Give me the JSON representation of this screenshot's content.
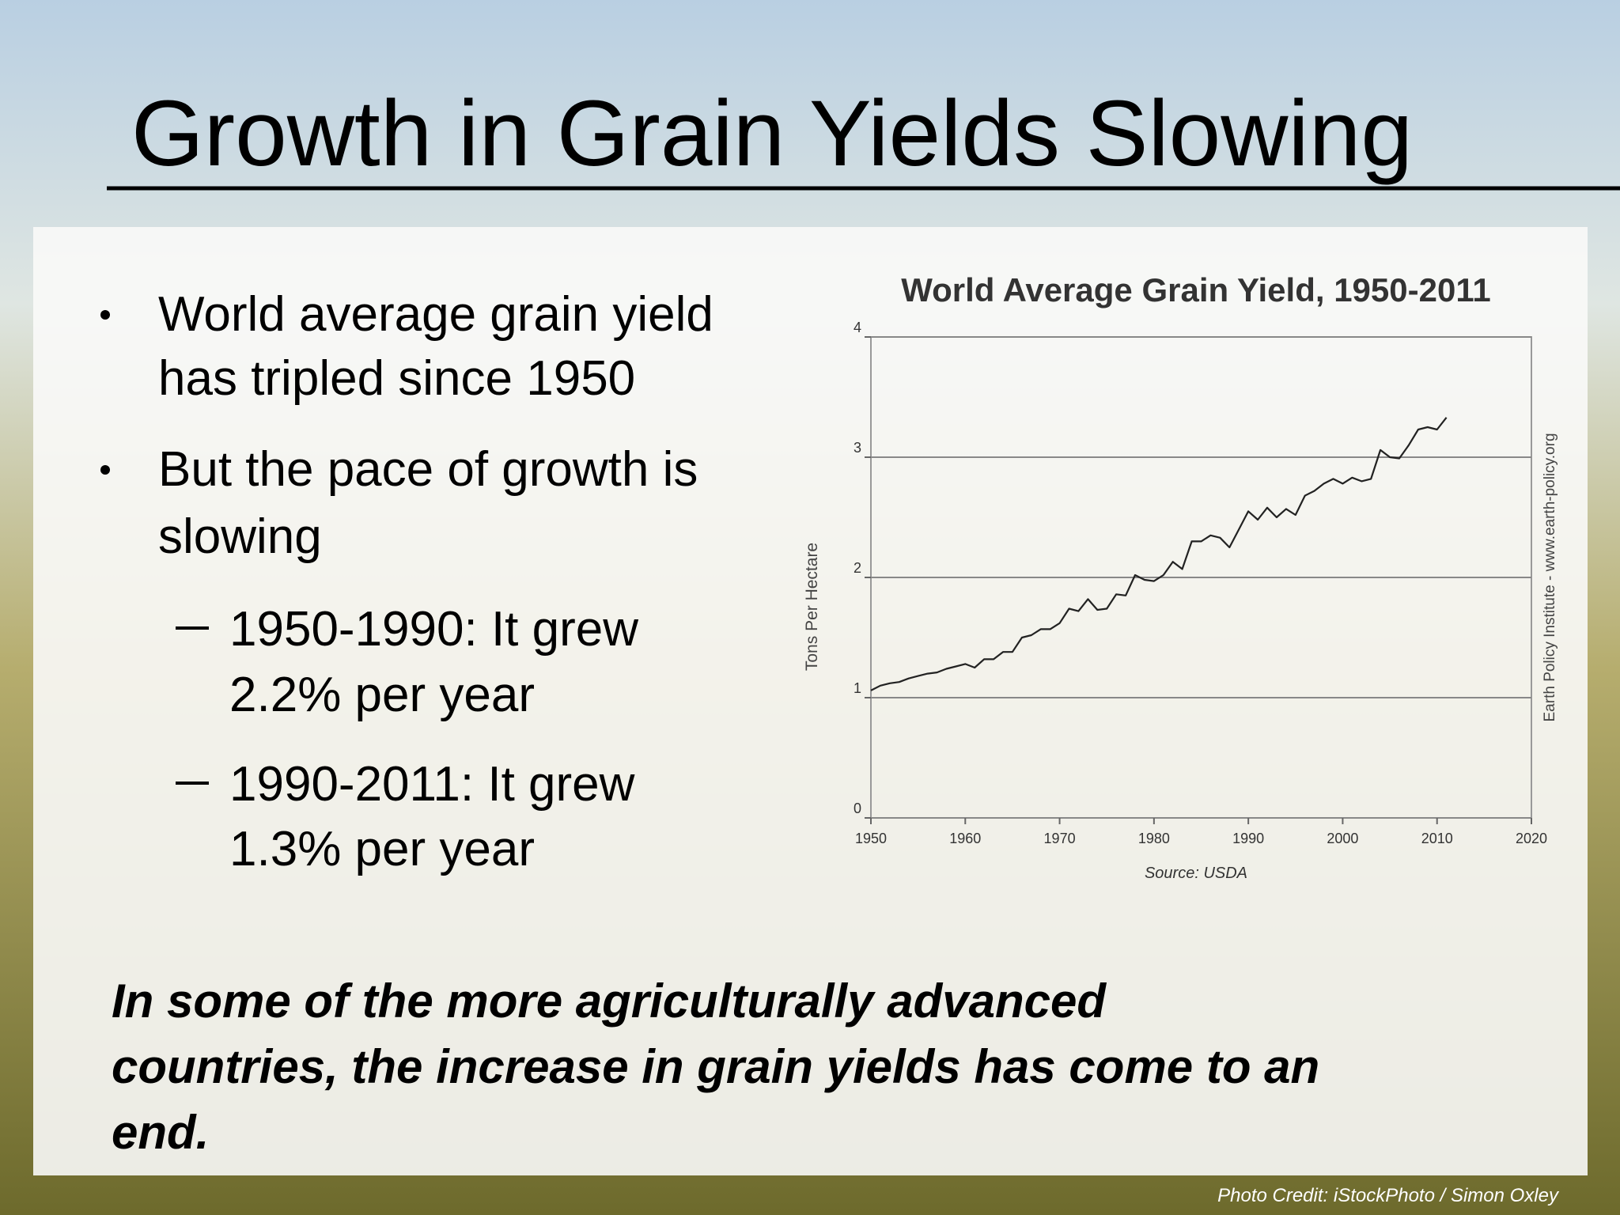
{
  "slide": {
    "title": "Growth in Grain Yields Slowing",
    "bullets": [
      {
        "lines": [
          "World average grain yield",
          "has tripled since 1950"
        ]
      },
      {
        "lines": [
          "But the pace of growth is",
          "slowing"
        ]
      }
    ],
    "sub_bullets": [
      {
        "lines": [
          "1950-1990: It grew",
          "2.2% per year"
        ]
      },
      {
        "lines": [
          "1990-2011: It grew",
          "1.3% per year"
        ]
      }
    ],
    "conclusion": [
      "In some of the more agriculturally advanced",
      "countries, the increase in grain yields has come to an",
      "end."
    ],
    "photo_credit": "Photo Credit: iStockPhoto / Simon Oxley"
  },
  "chart_data": {
    "type": "line",
    "title": "World  Average Grain Yield, 1950-2011",
    "y_label": "Tons Per Hectare",
    "source": "Source: USDA",
    "side_note": "Earth Policy Institute - www.earth-policy.org",
    "color": "#222222",
    "grid": true,
    "x": [
      1950,
      1951,
      1952,
      1953,
      1954,
      1955,
      1956,
      1957,
      1958,
      1959,
      1960,
      1961,
      1962,
      1963,
      1964,
      1965,
      1966,
      1967,
      1968,
      1969,
      1970,
      1971,
      1972,
      1973,
      1974,
      1975,
      1976,
      1977,
      1978,
      1979,
      1980,
      1981,
      1982,
      1983,
      1984,
      1985,
      1986,
      1987,
      1988,
      1989,
      1990,
      1991,
      1992,
      1993,
      1994,
      1995,
      1996,
      1997,
      1998,
      1999,
      2000,
      2001,
      2002,
      2003,
      2004,
      2005,
      2006,
      2007,
      2008,
      2009,
      2010,
      2011
    ],
    "values": [
      1.06,
      1.1,
      1.12,
      1.13,
      1.16,
      1.18,
      1.2,
      1.21,
      1.24,
      1.26,
      1.28,
      1.25,
      1.32,
      1.32,
      1.38,
      1.38,
      1.5,
      1.52,
      1.57,
      1.57,
      1.62,
      1.74,
      1.72,
      1.82,
      1.73,
      1.74,
      1.86,
      1.85,
      2.02,
      1.98,
      1.97,
      2.02,
      2.13,
      2.07,
      2.3,
      2.3,
      2.35,
      2.33,
      2.25,
      2.4,
      2.55,
      2.48,
      2.58,
      2.5,
      2.57,
      2.52,
      2.68,
      2.72,
      2.78,
      2.82,
      2.78,
      2.83,
      2.8,
      2.82,
      3.06,
      3.0,
      2.99,
      3.1,
      3.23,
      3.25,
      3.23,
      3.33
    ],
    "xlim": [
      1950,
      2020
    ],
    "xticks": [
      1950,
      1960,
      1970,
      1980,
      1990,
      2000,
      2010,
      2020
    ],
    "ylim": [
      0,
      4
    ],
    "yticks": [
      0,
      1,
      2,
      3,
      4
    ]
  }
}
